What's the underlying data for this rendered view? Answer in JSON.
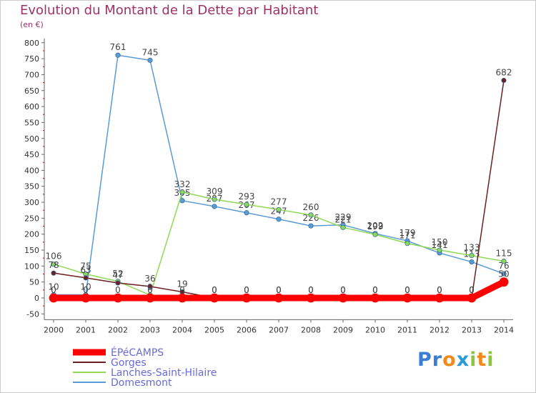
{
  "title": "Evolution du Montant de la Dette par Habitant",
  "subtitle": "(en €)",
  "logo": {
    "letters": [
      {
        "ch": "P",
        "color": "#3a7fd5"
      },
      {
        "ch": "r",
        "color": "#3a7fd5"
      },
      {
        "ch": "o",
        "color": "#f28a1a"
      },
      {
        "ch": "x",
        "color": "#2e9bd6"
      },
      {
        "ch": "i",
        "color": "#8cc63f"
      },
      {
        "ch": "t",
        "color": "#f28a1a"
      },
      {
        "ch": "i",
        "color": "#8cc63f"
      }
    ]
  },
  "chart_data": {
    "type": "line",
    "x": [
      "2000",
      "2001",
      "2002",
      "2003",
      "2004",
      "2005",
      "2006",
      "2007",
      "2008",
      "2009",
      "2010",
      "2011",
      "2012",
      "2013",
      "2014"
    ],
    "yticks": [
      -50,
      0,
      50,
      100,
      150,
      200,
      250,
      300,
      350,
      400,
      450,
      500,
      550,
      600,
      650,
      700,
      750,
      800
    ],
    "ylim": [
      -50,
      800
    ],
    "grid": false,
    "legend_position": "bottom-left",
    "series": [
      {
        "name": "Domesmont",
        "color": "#5b9bd5",
        "values": [
          10,
          10,
          761,
          745,
          305,
          287,
          267,
          247,
          226,
          229,
          202,
          179,
          141,
          113,
          76
        ],
        "labels": [
          "10",
          "10",
          "761",
          "745",
          "305",
          "287",
          "267",
          "247",
          "226",
          "229",
          "202",
          "179",
          "141",
          "113",
          "76"
        ]
      },
      {
        "name": "Lanches-Saint-Hilaire",
        "color": "#8fd957",
        "values": [
          106,
          75,
          52,
          9,
          332,
          309,
          293,
          277,
          260,
          221,
          199,
          171,
          150,
          133,
          115
        ],
        "labels": [
          "106",
          "75",
          "52",
          "9",
          "332",
          "309",
          "293",
          "277",
          "260",
          "221",
          "199",
          "171",
          "150",
          "133",
          "115"
        ]
      },
      {
        "name": "Gorges",
        "color": "#6b2020",
        "values": [
          78,
          63,
          47,
          36,
          19,
          0,
          0,
          0,
          0,
          0,
          0,
          0,
          0,
          0,
          682
        ],
        "labels": [
          "78",
          "63",
          "47",
          "36",
          "19",
          "0",
          "0",
          "0",
          "0",
          "0",
          "0",
          "0",
          "0",
          "0",
          "682"
        ]
      },
      {
        "name": "ÉPéCAMPS",
        "color": "#ff0000",
        "values": [
          0,
          0,
          0,
          0,
          0,
          0,
          0,
          0,
          0,
          0,
          0,
          0,
          0,
          0,
          50
        ],
        "labels": [
          "0",
          "0",
          "0",
          "0",
          "0",
          "0",
          "0",
          "0",
          "0",
          "0",
          "0",
          "0",
          "0",
          "0",
          "50"
        ]
      }
    ]
  }
}
